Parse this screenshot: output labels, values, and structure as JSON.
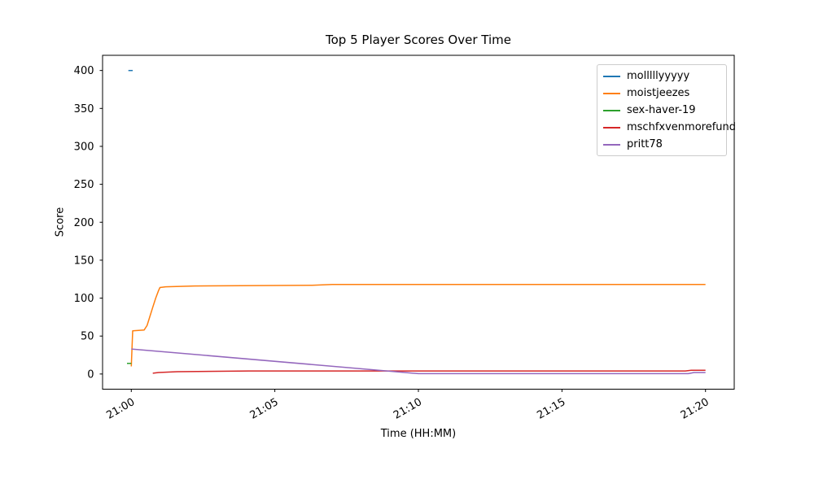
{
  "chart_data": {
    "type": "line",
    "title": "Top 5 Player Scores Over Time",
    "xlabel": "Time (HH:MM)",
    "ylabel": "Score",
    "x_unit": "minutes after 21:00",
    "xlim": [
      -1,
      21
    ],
    "ylim": [
      -20,
      420
    ],
    "grid": false,
    "legend_position": "upper right",
    "xticks": {
      "values": [
        0,
        5,
        10,
        15,
        20
      ],
      "labels": [
        "21:00",
        "21:05",
        "21:10",
        "21:15",
        "21:20"
      ],
      "rotation_deg": 30
    },
    "yticks": {
      "values": [
        0,
        50,
        100,
        150,
        200,
        250,
        300,
        350,
        400
      ],
      "labels": [
        "0",
        "50",
        "100",
        "150",
        "200",
        "250",
        "300",
        "350",
        "400"
      ]
    },
    "series": [
      {
        "name": "molllllyyyyy",
        "color": "#1f77b4",
        "points": [
          [
            -0.1,
            400
          ],
          [
            0.05,
            400
          ]
        ]
      },
      {
        "name": "moistjeezes",
        "color": "#ff7f0e",
        "points": [
          [
            0,
            10
          ],
          [
            0.05,
            57
          ],
          [
            0.45,
            58
          ],
          [
            0.55,
            64
          ],
          [
            0.65,
            76
          ],
          [
            0.75,
            88
          ],
          [
            0.85,
            100
          ],
          [
            0.95,
            110
          ],
          [
            1.0,
            114
          ],
          [
            1.2,
            115
          ],
          [
            2.2,
            116
          ],
          [
            6.3,
            117
          ],
          [
            7.0,
            118
          ],
          [
            20,
            118
          ]
        ]
      },
      {
        "name": "sex-haver-19",
        "color": "#2ca02c",
        "points": [
          [
            -0.15,
            14
          ],
          [
            0.0,
            14
          ]
        ]
      },
      {
        "name": "mschfxvenmorefund",
        "color": "#d62728",
        "points": [
          [
            0.75,
            1
          ],
          [
            0.95,
            2
          ],
          [
            1.6,
            3
          ],
          [
            4.1,
            4
          ],
          [
            19.3,
            4
          ],
          [
            19.5,
            5
          ],
          [
            20,
            5
          ]
        ]
      },
      {
        "name": "pritt78",
        "color": "#9467bd",
        "points": [
          [
            0,
            33
          ],
          [
            10,
            0.5
          ],
          [
            19.4,
            0.5
          ],
          [
            19.6,
            2
          ],
          [
            20,
            2
          ]
        ]
      }
    ]
  }
}
